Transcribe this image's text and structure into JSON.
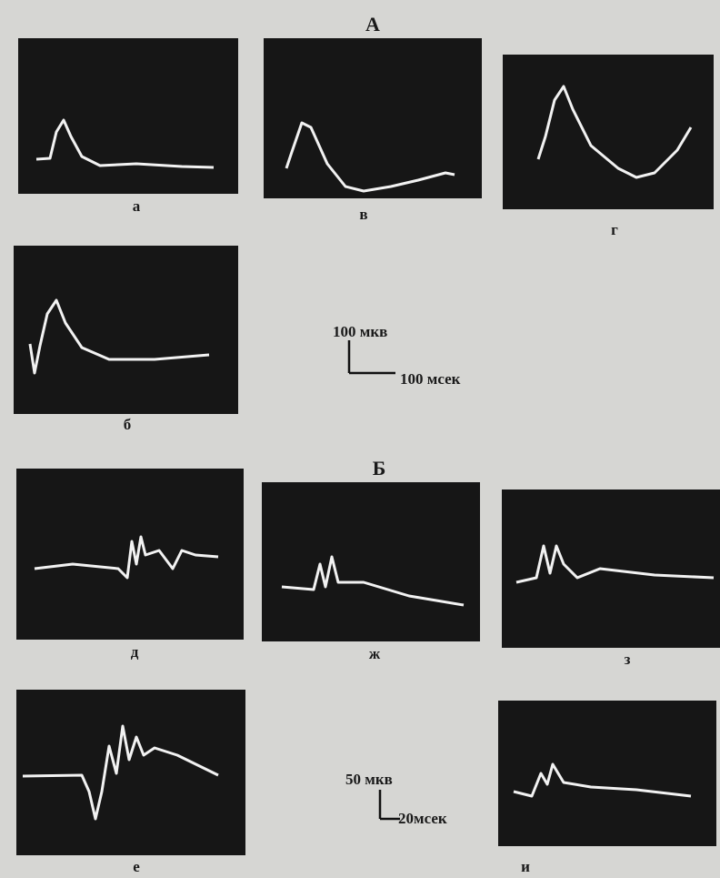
{
  "figure": {
    "section_a": {
      "label": "А",
      "panels": [
        "а",
        "в",
        "г",
        "б"
      ],
      "scale": {
        "amplitude": "100 мкв",
        "time": "100 мсек"
      }
    },
    "section_b": {
      "label": "Б",
      "panels": [
        "д",
        "ж",
        "з",
        "е",
        "и"
      ],
      "scale": {
        "amplitude": "50 мкв",
        "time": "20мсек"
      }
    }
  }
}
